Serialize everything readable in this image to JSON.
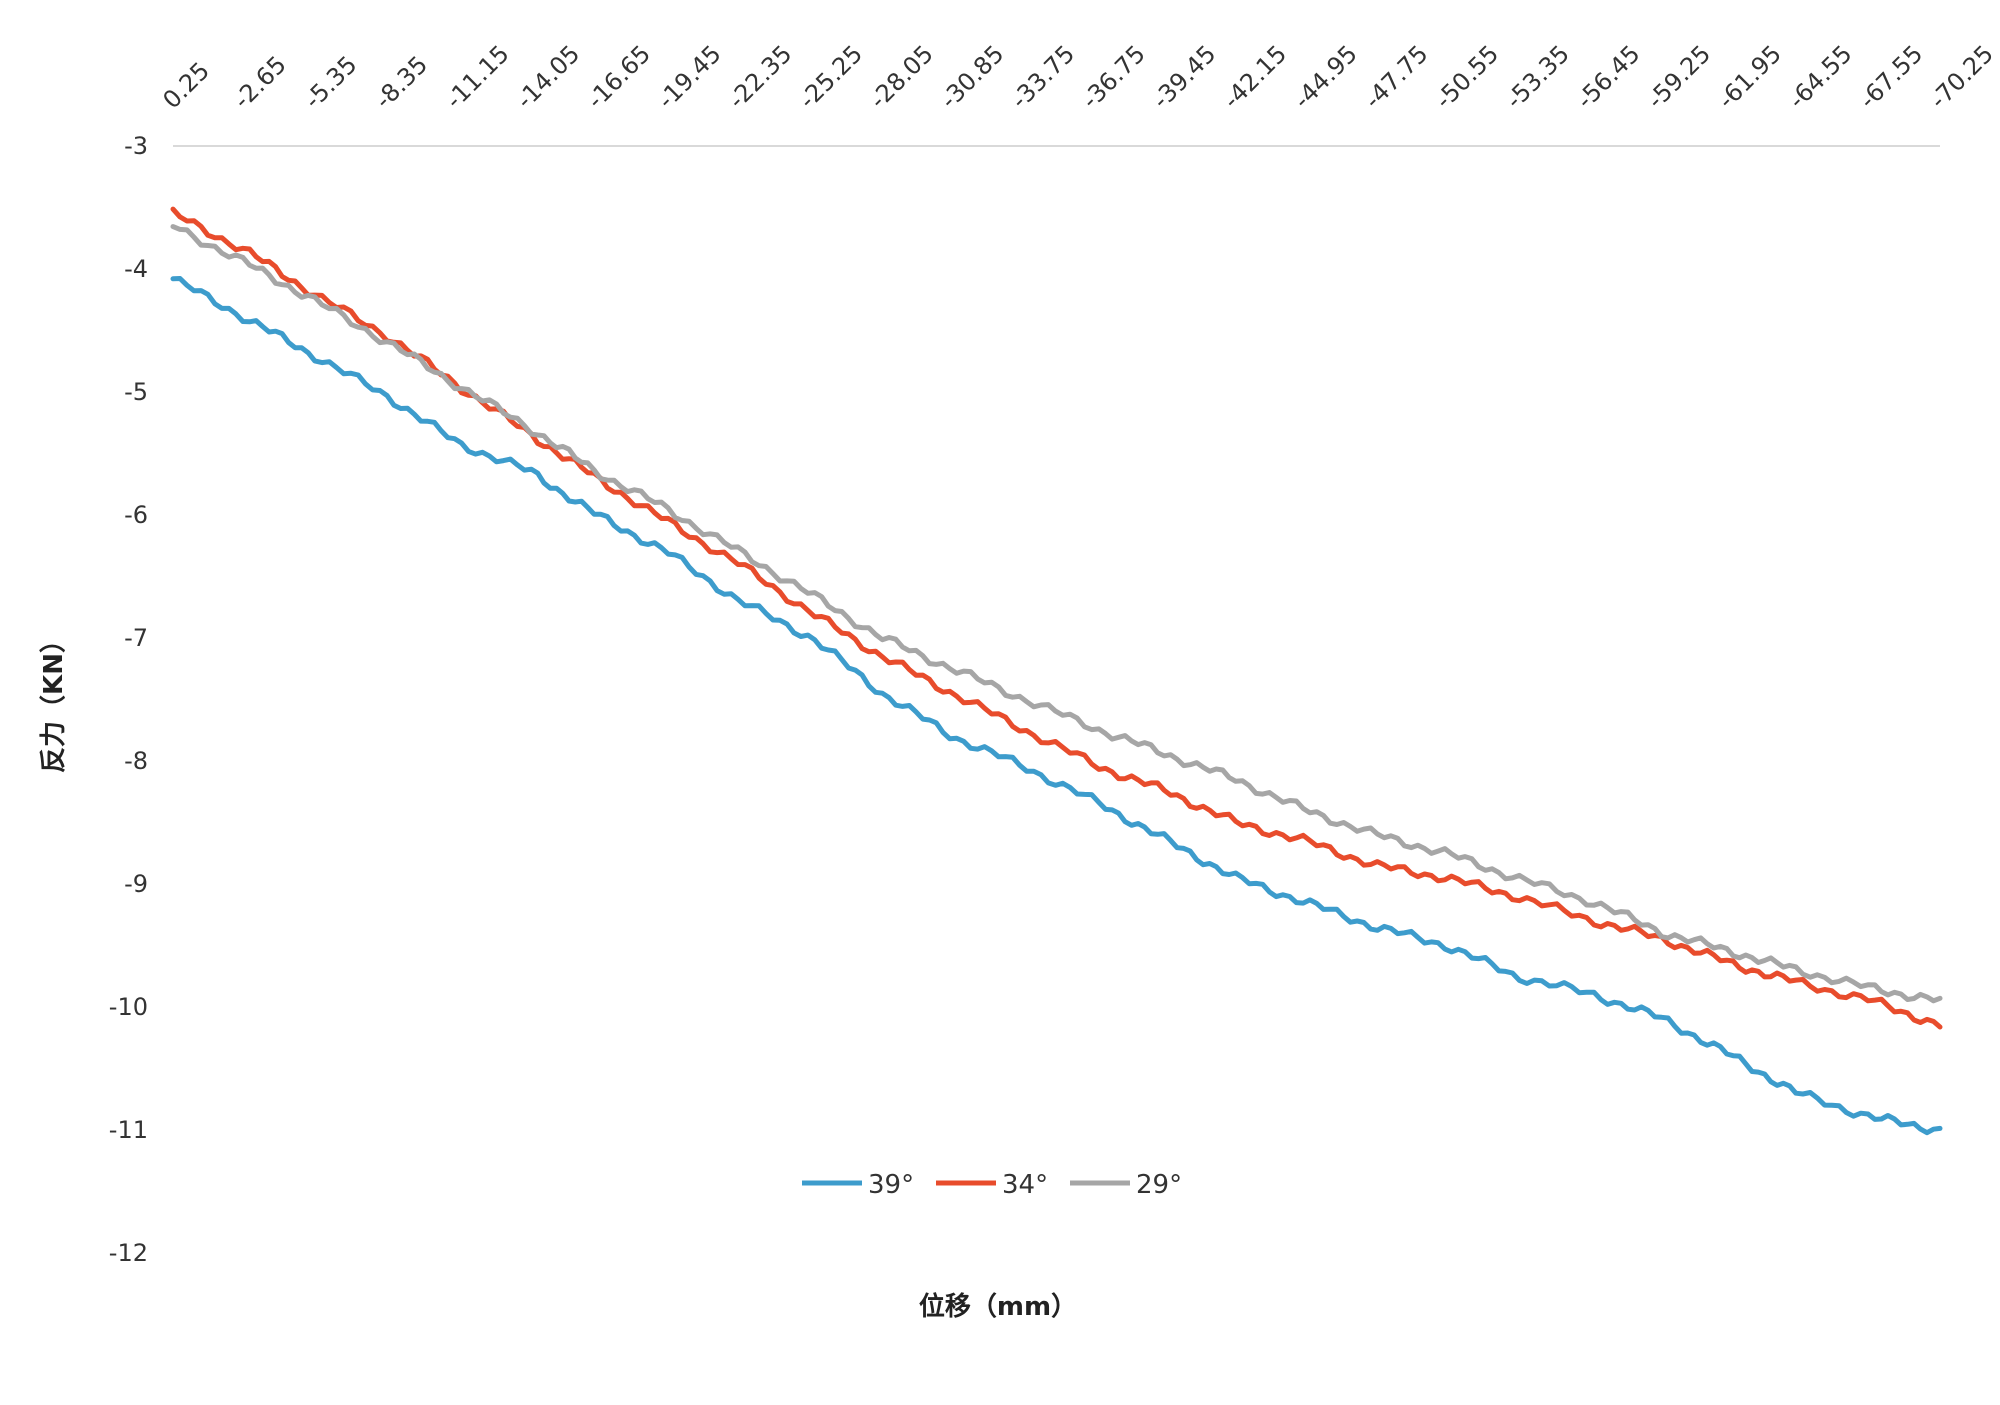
{
  "chart_data": {
    "type": "line",
    "xlabel": "位移（mm）",
    "ylabel": "反力（KN）",
    "ylim": [
      -12,
      -3
    ],
    "yticks": [
      -3,
      -4,
      -5,
      -6,
      -7,
      -8,
      -9,
      -10,
      -11,
      -12
    ],
    "x_range": [
      0.25,
      -70.25
    ],
    "x_tick_labels": [
      "0.25",
      "-2.65",
      "-5.35",
      "-8.35",
      "-11.15",
      "-14.05",
      "-16.65",
      "-19.45",
      "-22.35",
      "-25.25",
      "-28.05",
      "-30.85",
      "-33.75",
      "-36.75",
      "-39.45",
      "-42.15",
      "-44.95",
      "-47.75",
      "-50.55",
      "-53.35",
      "-56.45",
      "-59.25",
      "-61.95",
      "-64.55",
      "-67.55",
      "-70.25"
    ],
    "grid": "top border line only",
    "legend_position": "bottom-center",
    "x": [
      0.25,
      -2.65,
      -5.35,
      -8.35,
      -11.15,
      -14.05,
      -16.65,
      -19.45,
      -22.35,
      -25.25,
      -28.05,
      -30.85,
      -33.75,
      -36.75,
      -39.45,
      -42.15,
      -44.95,
      -47.75,
      -50.55,
      -53.35,
      -56.45,
      -59.25,
      -61.95,
      -64.55,
      -67.55,
      -70.25
    ],
    "series": [
      {
        "name": "39°",
        "color": "#3d9ccc",
        "values": [
          -4.08,
          -4.4,
          -4.7,
          -5.04,
          -5.42,
          -5.65,
          -6.0,
          -6.3,
          -6.7,
          -7.0,
          -7.45,
          -7.8,
          -8.05,
          -8.35,
          -8.65,
          -8.95,
          -9.15,
          -9.35,
          -9.5,
          -9.75,
          -9.9,
          -10.1,
          -10.4,
          -10.7,
          -10.9,
          -11.0
        ]
      },
      {
        "name": "34°",
        "color": "#e84c2c",
        "values": [
          -3.55,
          -3.85,
          -4.2,
          -4.55,
          -4.95,
          -5.35,
          -5.7,
          -6.05,
          -6.4,
          -6.8,
          -7.15,
          -7.45,
          -7.75,
          -8.05,
          -8.25,
          -8.5,
          -8.65,
          -8.85,
          -8.95,
          -9.1,
          -9.3,
          -9.45,
          -9.65,
          -9.8,
          -9.95,
          -10.15
        ]
      },
      {
        "name": "29°",
        "color": "#a6a6a6",
        "values": [
          -3.65,
          -3.95,
          -4.25,
          -4.6,
          -4.95,
          -5.3,
          -5.65,
          -5.95,
          -6.3,
          -6.65,
          -7.0,
          -7.25,
          -7.5,
          -7.75,
          -7.95,
          -8.15,
          -8.4,
          -8.6,
          -8.75,
          -8.95,
          -9.15,
          -9.4,
          -9.55,
          -9.7,
          -9.85,
          -9.95
        ]
      }
    ]
  }
}
